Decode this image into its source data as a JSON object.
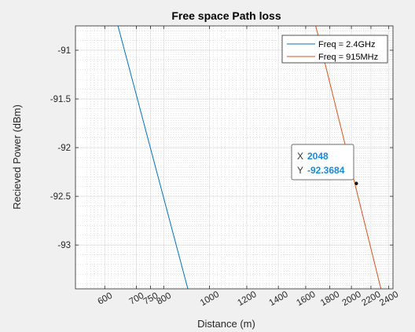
{
  "chart_data": {
    "type": "line",
    "title": "Free space Path loss",
    "xlabel": "Distance (m)",
    "ylabel": "Recieved Power (dBm)",
    "x_scale": "log",
    "xlim": [
      520,
      2450
    ],
    "ylim": [
      -93.45,
      -90.75
    ],
    "xticks": [
      600,
      700,
      750,
      800,
      1000,
      1200,
      1400,
      1600,
      1800,
      2000,
      2200,
      2400
    ],
    "xtick_labels": [
      "600",
      "700",
      "750",
      "800",
      "1000",
      "1200",
      "1400",
      "1600",
      "1800",
      "2000",
      "2200",
      "2400"
    ],
    "yticks": [
      -93,
      -92.5,
      -92,
      -91.5,
      -91
    ],
    "ytick_labels": [
      "-93",
      "-92.5",
      "-92",
      "-91.5",
      "-91"
    ],
    "grid": true,
    "minor_grid": true,
    "legend_position": "top-right",
    "series": [
      {
        "name": "Freq = 2.4GHz",
        "color": "#0072bd",
        "x": [
          640,
          900
        ],
        "y": [
          -90.75,
          -93.45
        ]
      },
      {
        "name": "Freq = 915MHz",
        "color": "#d95319",
        "x": [
          1680,
          2310
        ],
        "y": [
          -90.75,
          -93.45
        ]
      }
    ],
    "datatip": {
      "x_label": "X",
      "x_value": "2048",
      "y_label": "Y",
      "y_value": "-92.3684",
      "x": 2048,
      "y": -92.3684
    }
  }
}
